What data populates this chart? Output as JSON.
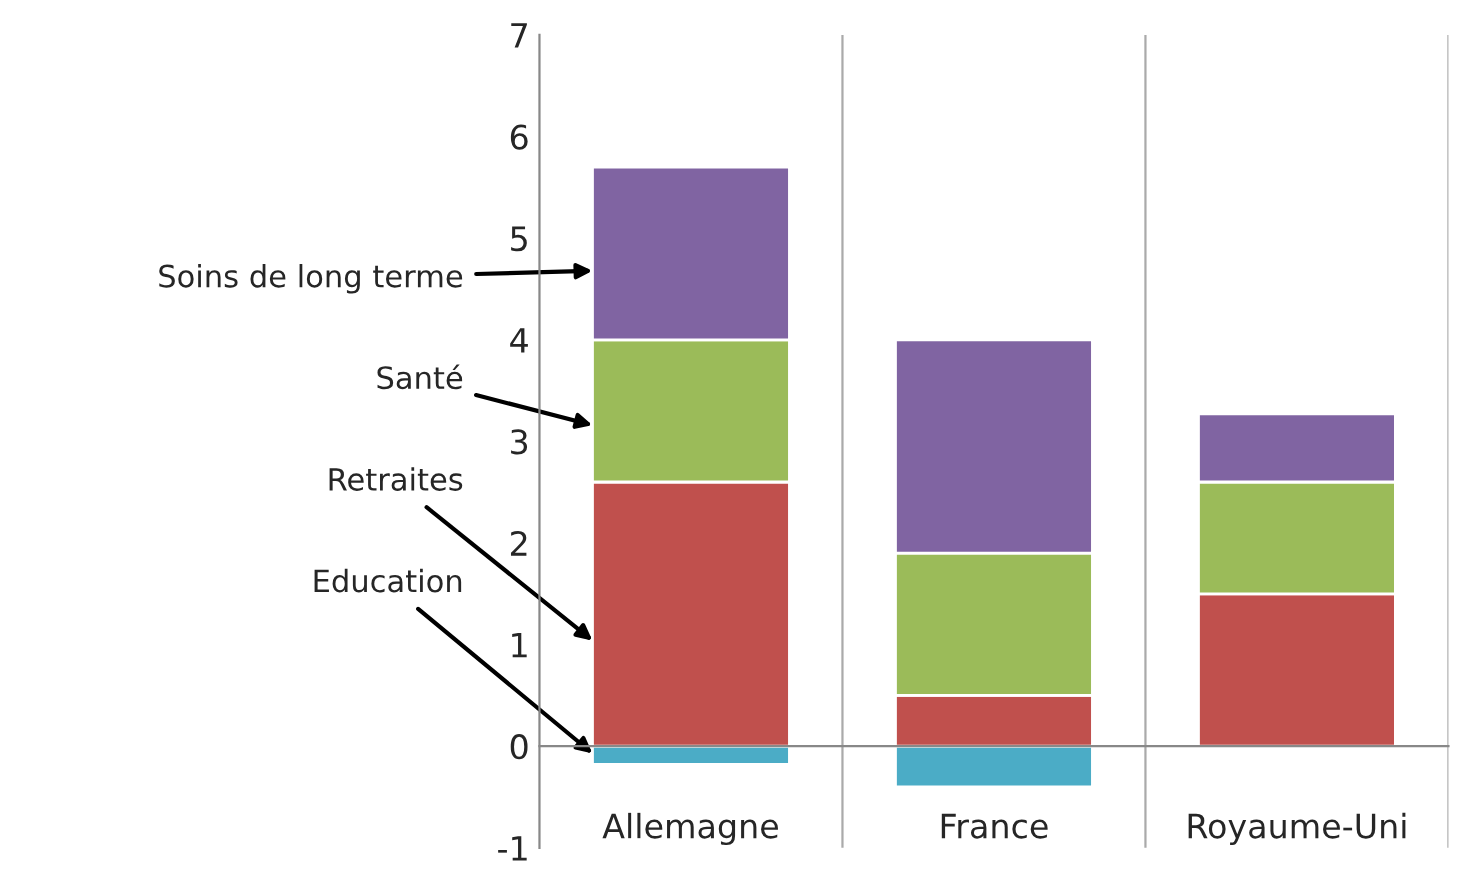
{
  "chart_data": {
    "type": "bar",
    "stacked": true,
    "categories": [
      "Allemagne",
      "France",
      "Royaume-Uni"
    ],
    "series": [
      {
        "name": "Education",
        "color": "#4bacc6",
        "values": [
          -0.18,
          -0.4,
          0
        ]
      },
      {
        "name": "Retraites",
        "color": "#c0504d",
        "values": [
          2.6,
          0.5,
          1.5
        ]
      },
      {
        "name": "Santé",
        "color": "#9bbb59",
        "values": [
          1.4,
          1.4,
          1.1
        ]
      },
      {
        "name": "Soins de long terme",
        "color": "#8064a2",
        "values": [
          1.7,
          2.1,
          0.67
        ]
      }
    ],
    "ylim": [
      -1,
      7
    ],
    "yticks": [
      -1,
      0,
      1,
      2,
      3,
      4,
      5,
      6,
      7
    ],
    "grid": "x",
    "legend": false
  }
}
